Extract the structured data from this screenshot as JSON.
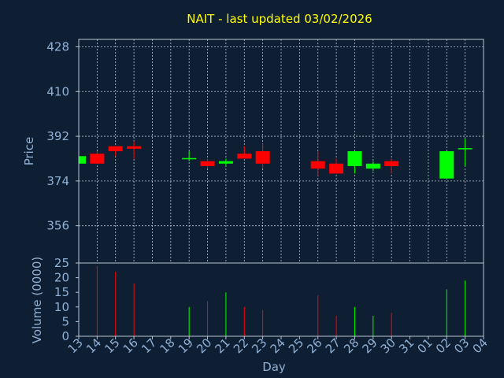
{
  "chart_data": {
    "type": "candlestick",
    "title": "NAIT - last updated 03/02/2026",
    "xlabel": "Day",
    "price_panel": {
      "ylabel": "Price",
      "ylim": [
        341,
        431
      ],
      "yticks": [
        "428",
        "410",
        "392",
        "374",
        "356"
      ],
      "grid": true
    },
    "volume_panel": {
      "ylabel": "Volume (0000)",
      "ylim": [
        0,
        25
      ],
      "yticks": [
        "25",
        "20",
        "15",
        "10",
        "5",
        "0"
      ]
    },
    "x_tick_labels": [
      "13",
      "14",
      "15",
      "16",
      "17",
      "18",
      "19",
      "20",
      "21",
      "22",
      "23",
      "24",
      "25",
      "26",
      "27",
      "28",
      "29",
      "30",
      "31",
      "01",
      "02",
      "03",
      "04"
    ],
    "up_color": "#00ff00",
    "down_color": "#ff0000",
    "candles": [
      {
        "day": "13",
        "open": 381,
        "high": 384,
        "low": 381,
        "close": 384
      },
      {
        "day": "14",
        "open": 385,
        "high": 386,
        "low": 381,
        "close": 381
      },
      {
        "day": "15",
        "open": 388,
        "high": 388,
        "low": 384,
        "close": 386
      },
      {
        "day": "16",
        "open": 388,
        "high": 390,
        "low": 383,
        "close": 387
      },
      {
        "day": "19",
        "open": 383,
        "high": 386,
        "low": 382,
        "close": 383
      },
      {
        "day": "20",
        "open": 382,
        "high": 383,
        "low": 379,
        "close": 380
      },
      {
        "day": "21",
        "open": 381,
        "high": 383,
        "low": 380,
        "close": 382
      },
      {
        "day": "22",
        "open": 385,
        "high": 388,
        "low": 383,
        "close": 383
      },
      {
        "day": "23",
        "open": 386,
        "high": 389,
        "low": 379,
        "close": 381
      },
      {
        "day": "26",
        "open": 382,
        "high": 386,
        "low": 376,
        "close": 379
      },
      {
        "day": "27",
        "open": 381,
        "high": 383,
        "low": 377,
        "close": 377
      },
      {
        "day": "28",
        "open": 380,
        "high": 386,
        "low": 377,
        "close": 386
      },
      {
        "day": "29",
        "open": 379,
        "high": 382,
        "low": 378,
        "close": 381
      },
      {
        "day": "30",
        "open": 382,
        "high": 383,
        "low": 377,
        "close": 380
      },
      {
        "day": "02",
        "open": 375,
        "high": 386,
        "low": 375,
        "close": 386
      },
      {
        "day": "03",
        "open": 387,
        "high": 391,
        "low": 380,
        "close": 387
      }
    ],
    "volumes": [
      {
        "day": "14",
        "value": 24
      },
      {
        "day": "15",
        "value": 22
      },
      {
        "day": "16",
        "value": 18
      },
      {
        "day": "19",
        "value": 10
      },
      {
        "day": "20",
        "value": 12
      },
      {
        "day": "21",
        "value": 15
      },
      {
        "day": "22",
        "value": 10
      },
      {
        "day": "23",
        "value": 9
      },
      {
        "day": "26",
        "value": 14
      },
      {
        "day": "27",
        "value": 7
      },
      {
        "day": "28",
        "value": 10
      },
      {
        "day": "29",
        "value": 7
      },
      {
        "day": "30",
        "value": 8
      },
      {
        "day": "02",
        "value": 16
      },
      {
        "day": "03",
        "value": 19
      }
    ]
  }
}
